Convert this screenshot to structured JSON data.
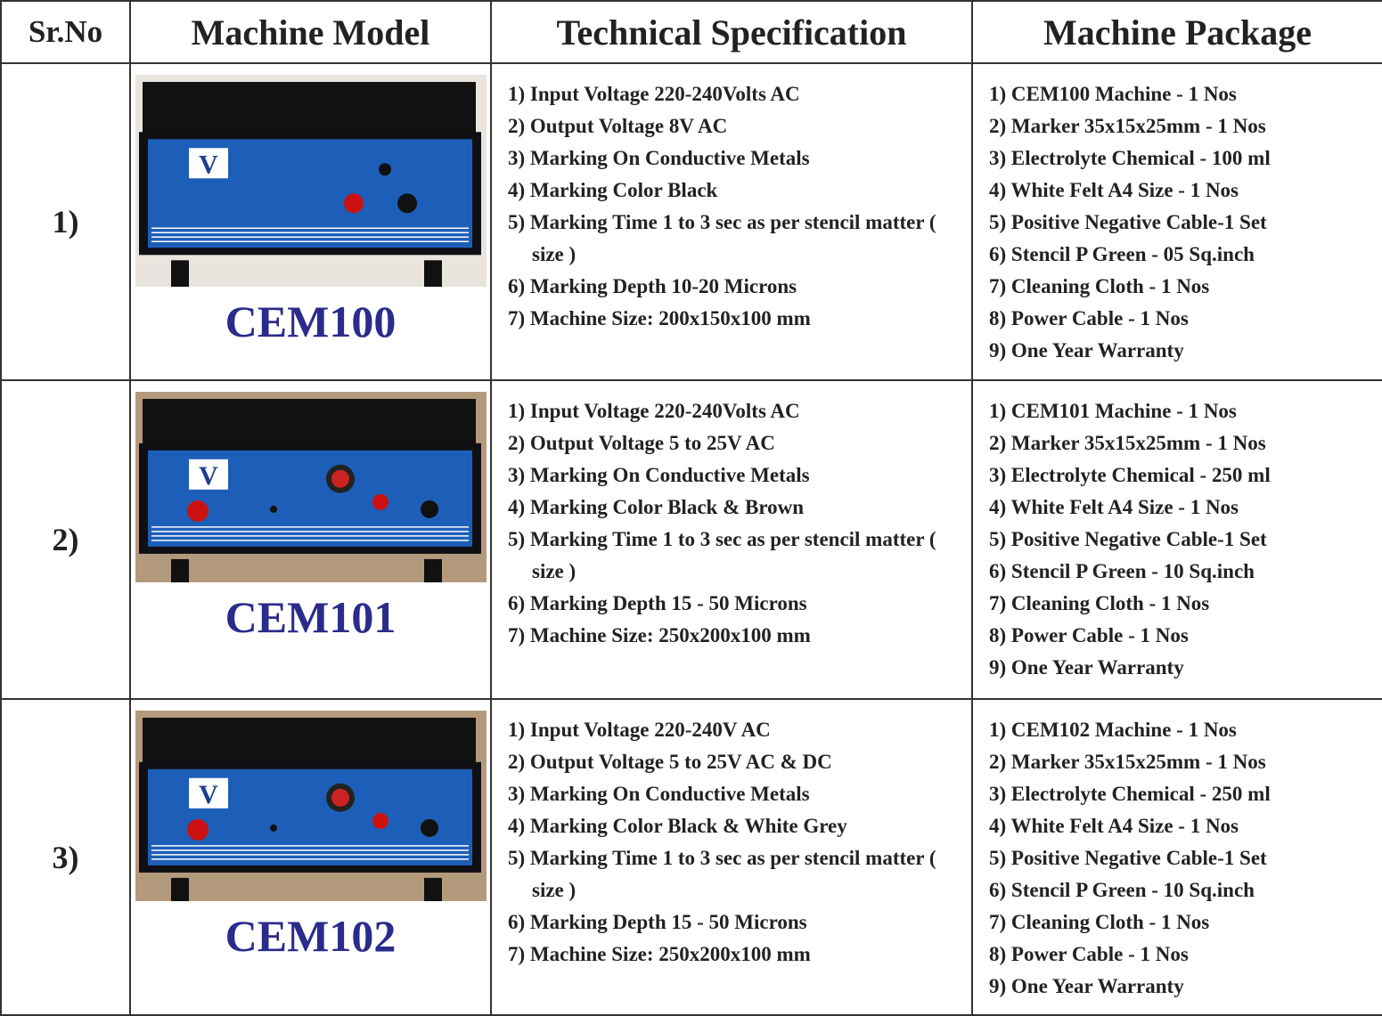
{
  "header": [
    "Sr.No",
    "Machine Model",
    "Technical Specification",
    "Machine Package"
  ],
  "rows": [
    {
      "sr": "1)",
      "model": "CEM100",
      "specs": [
        "1) Input Voltage 220-240Volts AC",
        "2) Output Voltage 8V AC",
        "3) Marking On Conductive Metals",
        "4) Marking Color Black",
        "5) Marking Time 1 to 3 sec as per stencil matter ( size )",
        "6) Marking Depth 10-20 Microns",
        "7) Machine Size: 200x150x100 mm"
      ],
      "package": [
        "1) CEM100 Machine - 1 Nos",
        "2) Marker 35x15x25mm - 1 Nos",
        "3) Electrolyte Chemical - 100 ml",
        "4) White Felt A4 Size - 1 Nos",
        "5) Positive Negative Cable-1 Set",
        "6) Stencil P Green - 05 Sq.inch",
        "7) Cleaning Cloth - 1 Nos",
        "8) Power Cable - 1 Nos",
        "9) One Year Warranty"
      ]
    },
    {
      "sr": "2)",
      "model": "CEM101",
      "specs": [
        "1) Input Voltage 220-240Volts AC",
        "2) Output Voltage 5 to 25V AC",
        "3) Marking On Conductive Metals",
        "4) Marking Color Black & Brown",
        "5) Marking Time 1 to 3 sec as per stencil matter ( size )",
        "6) Marking Depth 15 - 50 Microns",
        "7) Machine Size: 250x200x100 mm"
      ],
      "package": [
        "1) CEM101 Machine - 1 Nos",
        "2) Marker 35x15x25mm - 1 Nos",
        "3) Electrolyte Chemical - 250 ml",
        "4) White Felt A4 Size - 1 Nos",
        "5) Positive Negative Cable-1 Set",
        "6) Stencil P Green - 10 Sq.inch",
        "7) Cleaning Cloth - 1 Nos",
        "8) Power Cable - 1 Nos",
        "9) One Year Warranty"
      ]
    },
    {
      "sr": "3)",
      "model": "CEM102",
      "specs": [
        "1) Input Voltage 220-240V AC",
        "2) Output Voltage 5 to 25V AC & DC",
        "3) Marking On Conductive Metals",
        "4) Marking Color Black & White Grey",
        "5) Marking Time 1 to 3 sec as per stencil matter ( size )",
        "6) Marking Depth 15 - 50 Microns",
        "7) Machine Size: 250x200x100 mm"
      ],
      "package": [
        "1) CEM102 Machine - 1 Nos",
        "2) Marker 35x15x25mm - 1 Nos",
        "3) Electrolyte Chemical - 250 ml",
        "4) White Felt A4 Size - 1 Nos",
        "5) Positive Negative Cable-1 Set",
        "6) Stencil P Green - 10 Sq.inch",
        "7) Cleaning Cloth - 1 Nos",
        "8) Power Cable - 1 Nos",
        "9) One Year Warranty"
      ]
    }
  ]
}
